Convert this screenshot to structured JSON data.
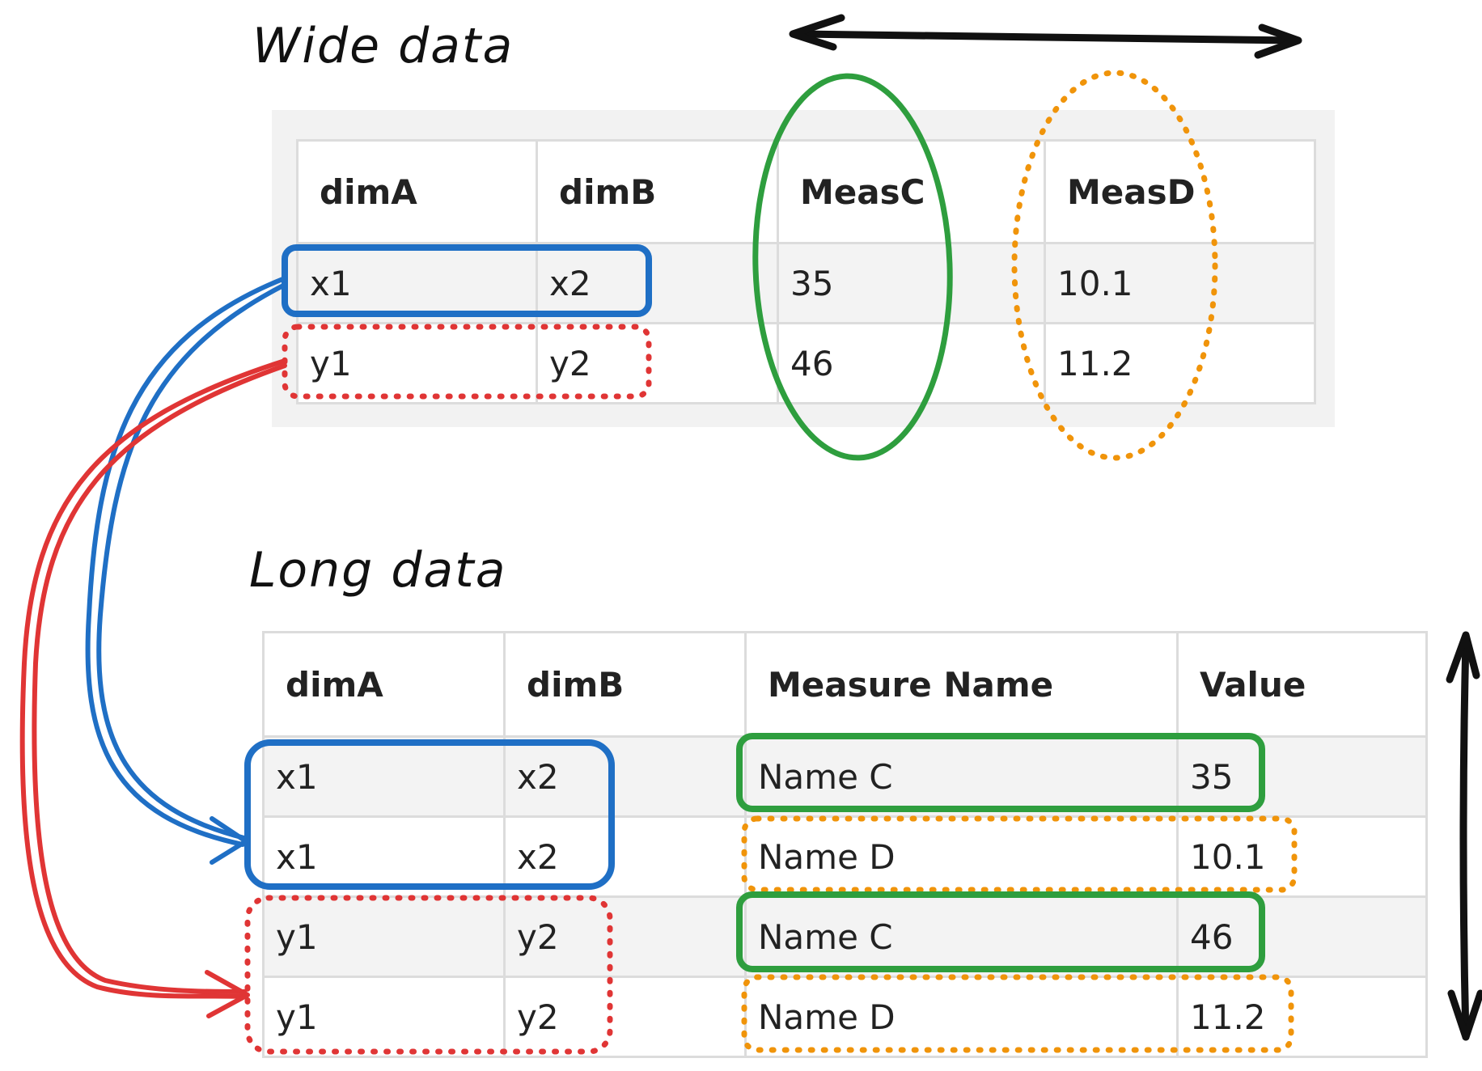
{
  "wide": {
    "title": "Wide data",
    "headers": [
      "dimA",
      "dimB",
      "MeasC",
      "MeasD"
    ],
    "rows": [
      [
        "x1",
        "x2",
        "35",
        "10.1"
      ],
      [
        "y1",
        "y2",
        "46",
        "11.2"
      ]
    ]
  },
  "long": {
    "title": "Long data",
    "headers": [
      "dimA",
      "dimB",
      "Measure Name",
      "Value"
    ],
    "rows": [
      [
        "x1",
        "x2",
        "Name C",
        "35"
      ],
      [
        "x1",
        "x2",
        "Name D",
        "10.1"
      ],
      [
        "y1",
        "y2",
        "Name C",
        "46"
      ],
      [
        "y1",
        "y2",
        "Name D",
        "11.2"
      ]
    ]
  },
  "colors": {
    "blue": "#1f6fc5",
    "red": "#e03535",
    "green": "#2e9e3e",
    "orange": "#f0940a",
    "black": "#111111"
  }
}
